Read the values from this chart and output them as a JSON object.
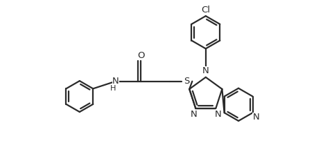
{
  "bg_color": "#ffffff",
  "line_color": "#2a2a2a",
  "line_width": 1.6,
  "font_size_atom": 9.5,
  "figsize": [
    4.66,
    2.2
  ],
  "dpi": 100,
  "xlim": [
    -2.2,
    2.8
  ],
  "ylim": [
    -1.5,
    2.2
  ]
}
